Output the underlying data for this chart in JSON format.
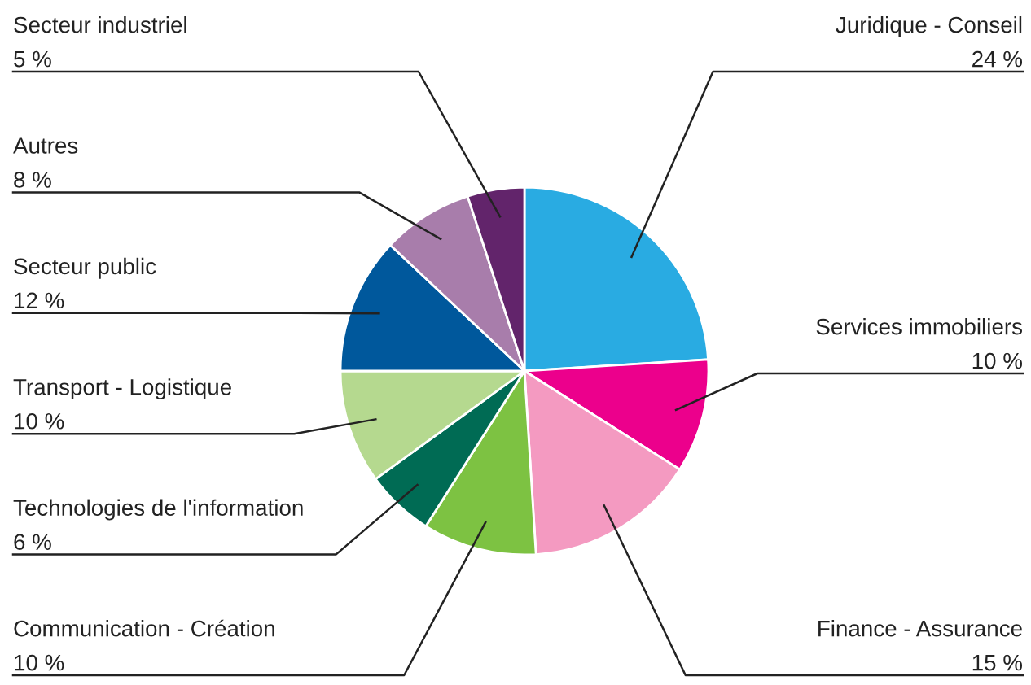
{
  "chart_data": {
    "type": "pie",
    "categories": [
      "Juridique - Conseil",
      "Services immobiliers",
      "Finance - Assurance",
      "Communication - Création",
      "Technologies de l'information",
      "Transport - Logistique",
      "Secteur public",
      "Autres",
      "Secteur industriel"
    ],
    "values": [
      24,
      10,
      15,
      10,
      6,
      10,
      12,
      8,
      5
    ],
    "value_labels": [
      "24 %",
      "10 %",
      "15 %",
      "10 %",
      "6 %",
      "10 %",
      "12 %",
      "8 %",
      "5 %"
    ],
    "colors": [
      "#29abe2",
      "#ec008c",
      "#f49ac1",
      "#7dc242",
      "#006b54",
      "#b5d98f",
      "#00589c",
      "#a87dab",
      "#62246b"
    ]
  }
}
